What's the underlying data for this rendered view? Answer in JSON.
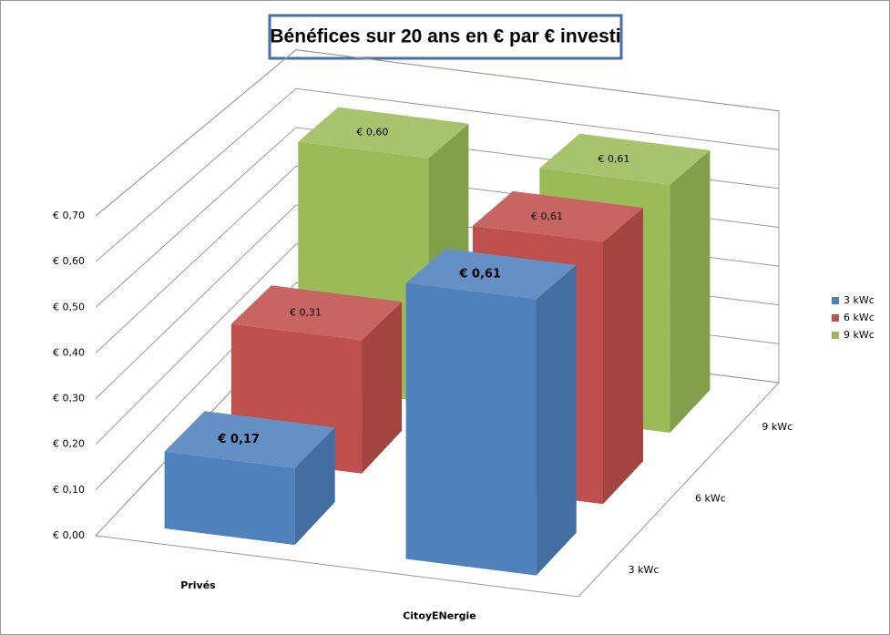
{
  "chart_data": {
    "type": "bar3d",
    "title": "Bénéfices sur 20 ans en € par € investi",
    "categories": [
      "Privés",
      "CitoyENergie"
    ],
    "series": [
      {
        "name": "3 kWc",
        "color": "#4f81bd",
        "values": [
          0.17,
          0.61
        ],
        "value_labels": [
          "€ 0,17",
          "€ 0,61"
        ]
      },
      {
        "name": "6 kWc",
        "color": "#c0504d",
        "values": [
          0.31,
          0.61
        ],
        "value_labels": [
          "€ 0,31",
          "€ 0,61"
        ]
      },
      {
        "name": "9 kWc",
        "color": "#9bbb59",
        "values": [
          0.6,
          0.61
        ],
        "value_labels": [
          "€ 0,60",
          "€ 0,61"
        ]
      }
    ],
    "ylim": [
      0,
      0.7
    ],
    "yticks": [
      {
        "value": 0,
        "label": "€ 0,00"
      },
      {
        "value": 0.1,
        "label": "€ 0,10"
      },
      {
        "value": 0.2,
        "label": "€ 0,20"
      },
      {
        "value": 0.3,
        "label": "€ 0,30"
      },
      {
        "value": 0.4,
        "label": "€ 0,40"
      },
      {
        "value": 0.5,
        "label": "€ 0,50"
      },
      {
        "value": 0.6,
        "label": "€ 0,60"
      },
      {
        "value": 0.7,
        "label": "€ 0,70"
      }
    ],
    "grid": true,
    "legend": "right"
  }
}
